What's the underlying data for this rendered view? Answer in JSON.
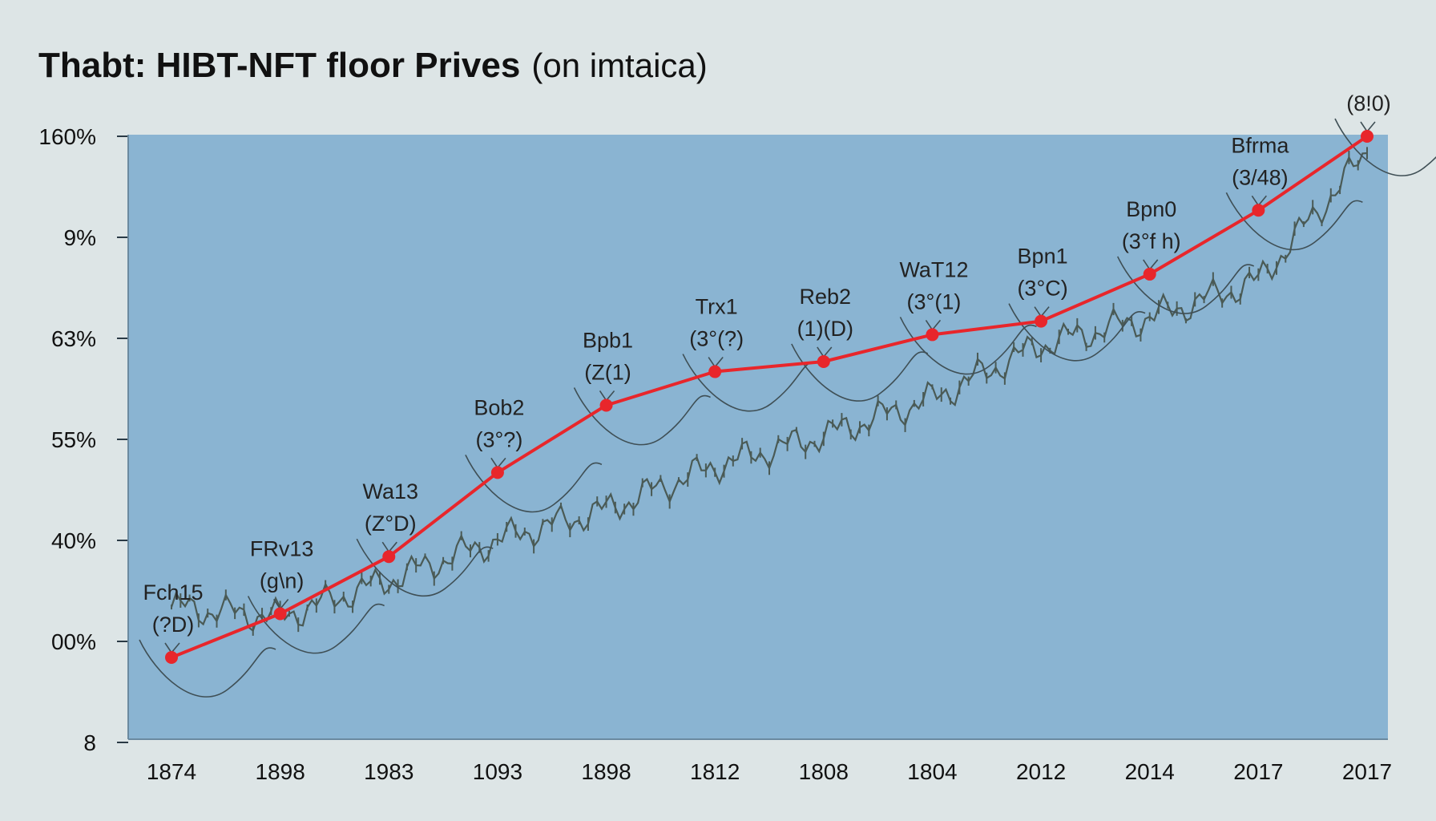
{
  "chart_data": {
    "type": "line",
    "title": "Thabt: HIBT-NFT floor Prives",
    "subtitle": "(on imtaica)",
    "y_tick_labels": [
      "160%",
      "9%",
      "63%",
      "55%",
      "40%",
      "00%",
      "8"
    ],
    "categories": [
      "1874",
      "1898",
      "1983",
      "1093",
      "1898",
      "1812",
      "1808",
      "1804",
      "2012",
      "2014",
      "2017",
      "2017"
    ],
    "series": [
      {
        "color": "#e8262b",
        "values": [
          -1,
          0.3,
          2.0,
          4.5,
          6.5,
          7.5,
          7.8,
          8.6,
          9.0,
          10.4,
          12.3,
          14.5
        ]
      },
      {
        "color": "#4a5a55",
        "values": [
          0.5,
          0.2,
          1.3,
          2.5,
          3.4,
          4.7,
          5.6,
          6.7,
          8.3,
          9.1,
          10.2,
          14.0
        ]
      }
    ],
    "annotations": [
      {
        "category_index": 0,
        "label": "Fch15",
        "value": "(?D)"
      },
      {
        "category_index": 1,
        "label": "FRv13",
        "value": "(g\\n)"
      },
      {
        "category_index": 2,
        "label": "Wa13",
        "value": "(Z°D)"
      },
      {
        "category_index": 3,
        "label": "Bob2",
        "value": "(3°?)"
      },
      {
        "category_index": 4,
        "label": "Bpb1",
        "value": "(Z(1)"
      },
      {
        "category_index": 5,
        "label": "Trx1",
        "value": "(3°(?)"
      },
      {
        "category_index": 6,
        "label": "Reb2",
        "value": "(1)(D)"
      },
      {
        "category_index": 7,
        "label": "WaT12",
        "value": "(3°(1)"
      },
      {
        "category_index": 8,
        "label": "Bpn1",
        "value": "(3°C)"
      },
      {
        "category_index": 9,
        "label": "Bpn0",
        "value": "(3°f h)"
      },
      {
        "category_index": 10,
        "label": "Bfrma",
        "value": "(3/48)"
      },
      {
        "category_index": 11,
        "label": "",
        "value": "(8!0)"
      }
    ],
    "grid": false,
    "legend": "none",
    "background": "#8ab4d2"
  }
}
